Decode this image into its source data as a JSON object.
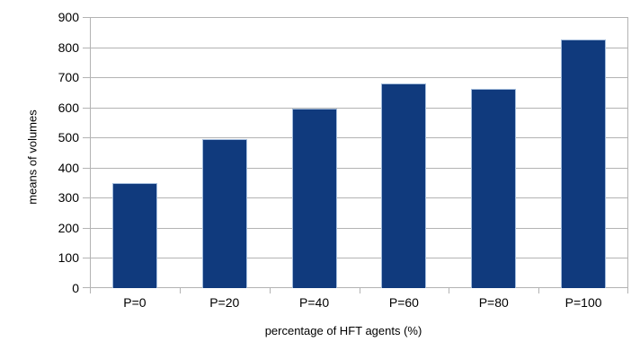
{
  "chart_data": {
    "type": "bar",
    "title": "",
    "categories": [
      "P=0",
      "P=20",
      "P=40",
      "P=60",
      "P=80",
      "P=100"
    ],
    "values": [
      350,
      494,
      597,
      679,
      663,
      825
    ],
    "xlabel": "percentage of HFT agents (%)",
    "ylabel": "means of volumes",
    "ylim": [
      0,
      900
    ],
    "yticks": [
      0,
      100,
      200,
      300,
      400,
      500,
      600,
      700,
      800,
      900
    ],
    "grid": true,
    "legend": "none",
    "bar_width_ratio": 0.5,
    "colors": {
      "bar_fill": "#103a7d",
      "bar_border": "#a3bcdc",
      "gridline": "#b3b3b3",
      "axis": "#b3b3b3",
      "text": "#000000",
      "background": "#ffffff"
    }
  }
}
